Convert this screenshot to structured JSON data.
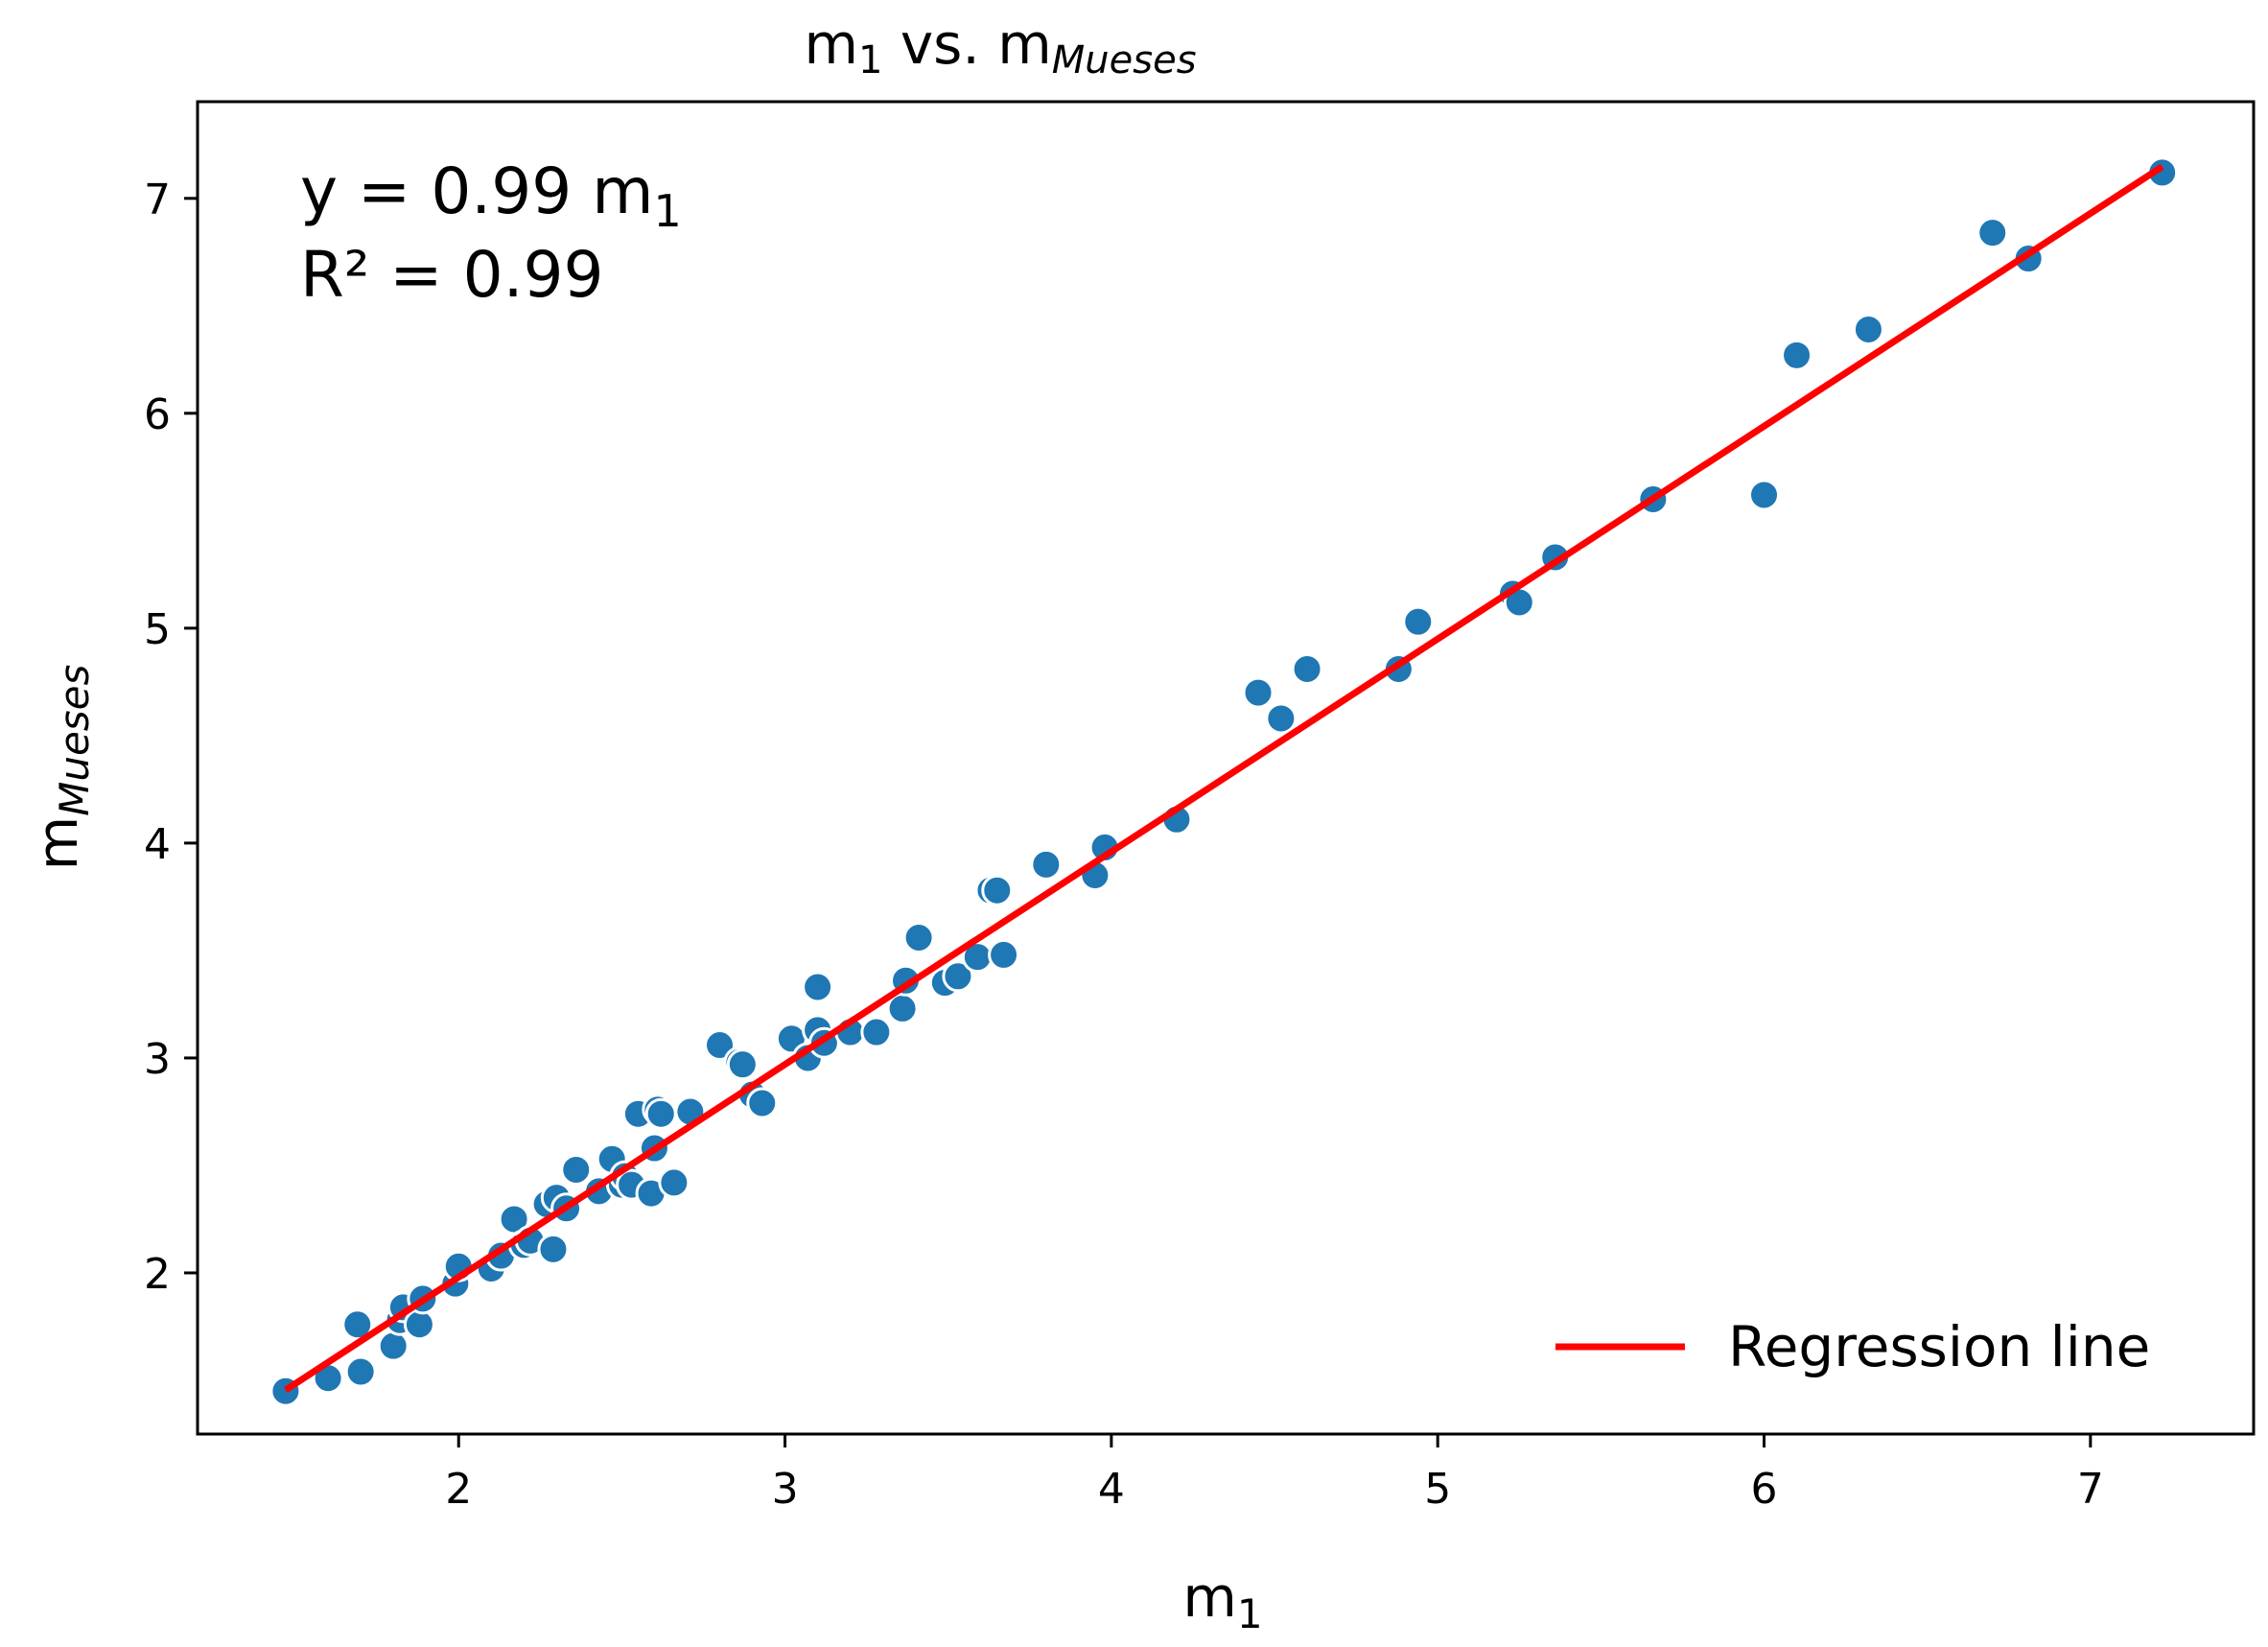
{
  "chart_data": {
    "type": "scatter",
    "title": {
      "main": "m",
      "sub1": "1",
      "mid": " vs. m",
      "sub2": "Mueses"
    },
    "xlabel": {
      "main": "m",
      "sub": "1"
    },
    "ylabel": {
      "main": "m",
      "sub": "Mueses"
    },
    "xlim": [
      1.2,
      7.5
    ],
    "ylim": [
      1.25,
      7.45
    ],
    "xticks": [
      2,
      3,
      4,
      5,
      6,
      7
    ],
    "yticks": [
      2,
      3,
      4,
      5,
      6,
      7
    ],
    "annotation": {
      "equation_main": "y = 0.99 m",
      "equation_sub": "1",
      "r2": "R² = 0.99"
    },
    "legend": {
      "label": "Regression line",
      "position": "lower-right"
    },
    "regression": {
      "slope": 0.99,
      "x_range": [
        1.47,
        7.22
      ]
    },
    "point_color": "#1f77b4",
    "line_color": "#ff0000",
    "series": [
      {
        "name": "data",
        "x": [
          1.47,
          1.6,
          1.7,
          1.69,
          1.8,
          1.82,
          1.83,
          1.88,
          1.89,
          1.99,
          2.0,
          2.1,
          2.13,
          2.17,
          2.2,
          2.22,
          2.27,
          2.29,
          2.3,
          2.33,
          2.36,
          2.43,
          2.47,
          2.5,
          2.51,
          2.53,
          2.55,
          2.59,
          2.6,
          2.61,
          2.62,
          2.66,
          2.71,
          2.8,
          2.86,
          2.87,
          2.9,
          2.93,
          3.02,
          3.07,
          3.1,
          3.1,
          3.12,
          3.2,
          3.28,
          3.36,
          3.37,
          3.41,
          3.49,
          3.53,
          3.59,
          3.63,
          3.65,
          3.67,
          3.8,
          3.95,
          3.98,
          4.2,
          4.45,
          4.52,
          4.6,
          4.88,
          4.94,
          5.23,
          5.25,
          5.36,
          5.66,
          6.0,
          6.1,
          6.32,
          6.7,
          6.81,
          7.22
        ],
        "y": [
          1.45,
          1.51,
          1.54,
          1.76,
          1.66,
          1.78,
          1.84,
          1.76,
          1.88,
          1.95,
          2.03,
          2.02,
          2.08,
          2.25,
          2.13,
          2.15,
          2.32,
          2.11,
          2.35,
          2.3,
          2.48,
          2.38,
          2.53,
          2.41,
          2.45,
          2.41,
          2.74,
          2.37,
          2.58,
          2.76,
          2.74,
          2.42,
          2.75,
          3.06,
          2.98,
          2.97,
          2.83,
          2.79,
          3.09,
          3.0,
          3.33,
          3.13,
          3.07,
          3.12,
          3.12,
          3.23,
          3.36,
          3.56,
          3.35,
          3.38,
          3.47,
          3.78,
          3.78,
          3.48,
          3.9,
          3.85,
          3.98,
          4.11,
          4.7,
          4.58,
          4.81,
          4.81,
          5.03,
          5.16,
          5.12,
          5.33,
          5.6,
          5.62,
          6.27,
          6.39,
          6.84,
          6.72,
          7.12
        ]
      }
    ]
  }
}
